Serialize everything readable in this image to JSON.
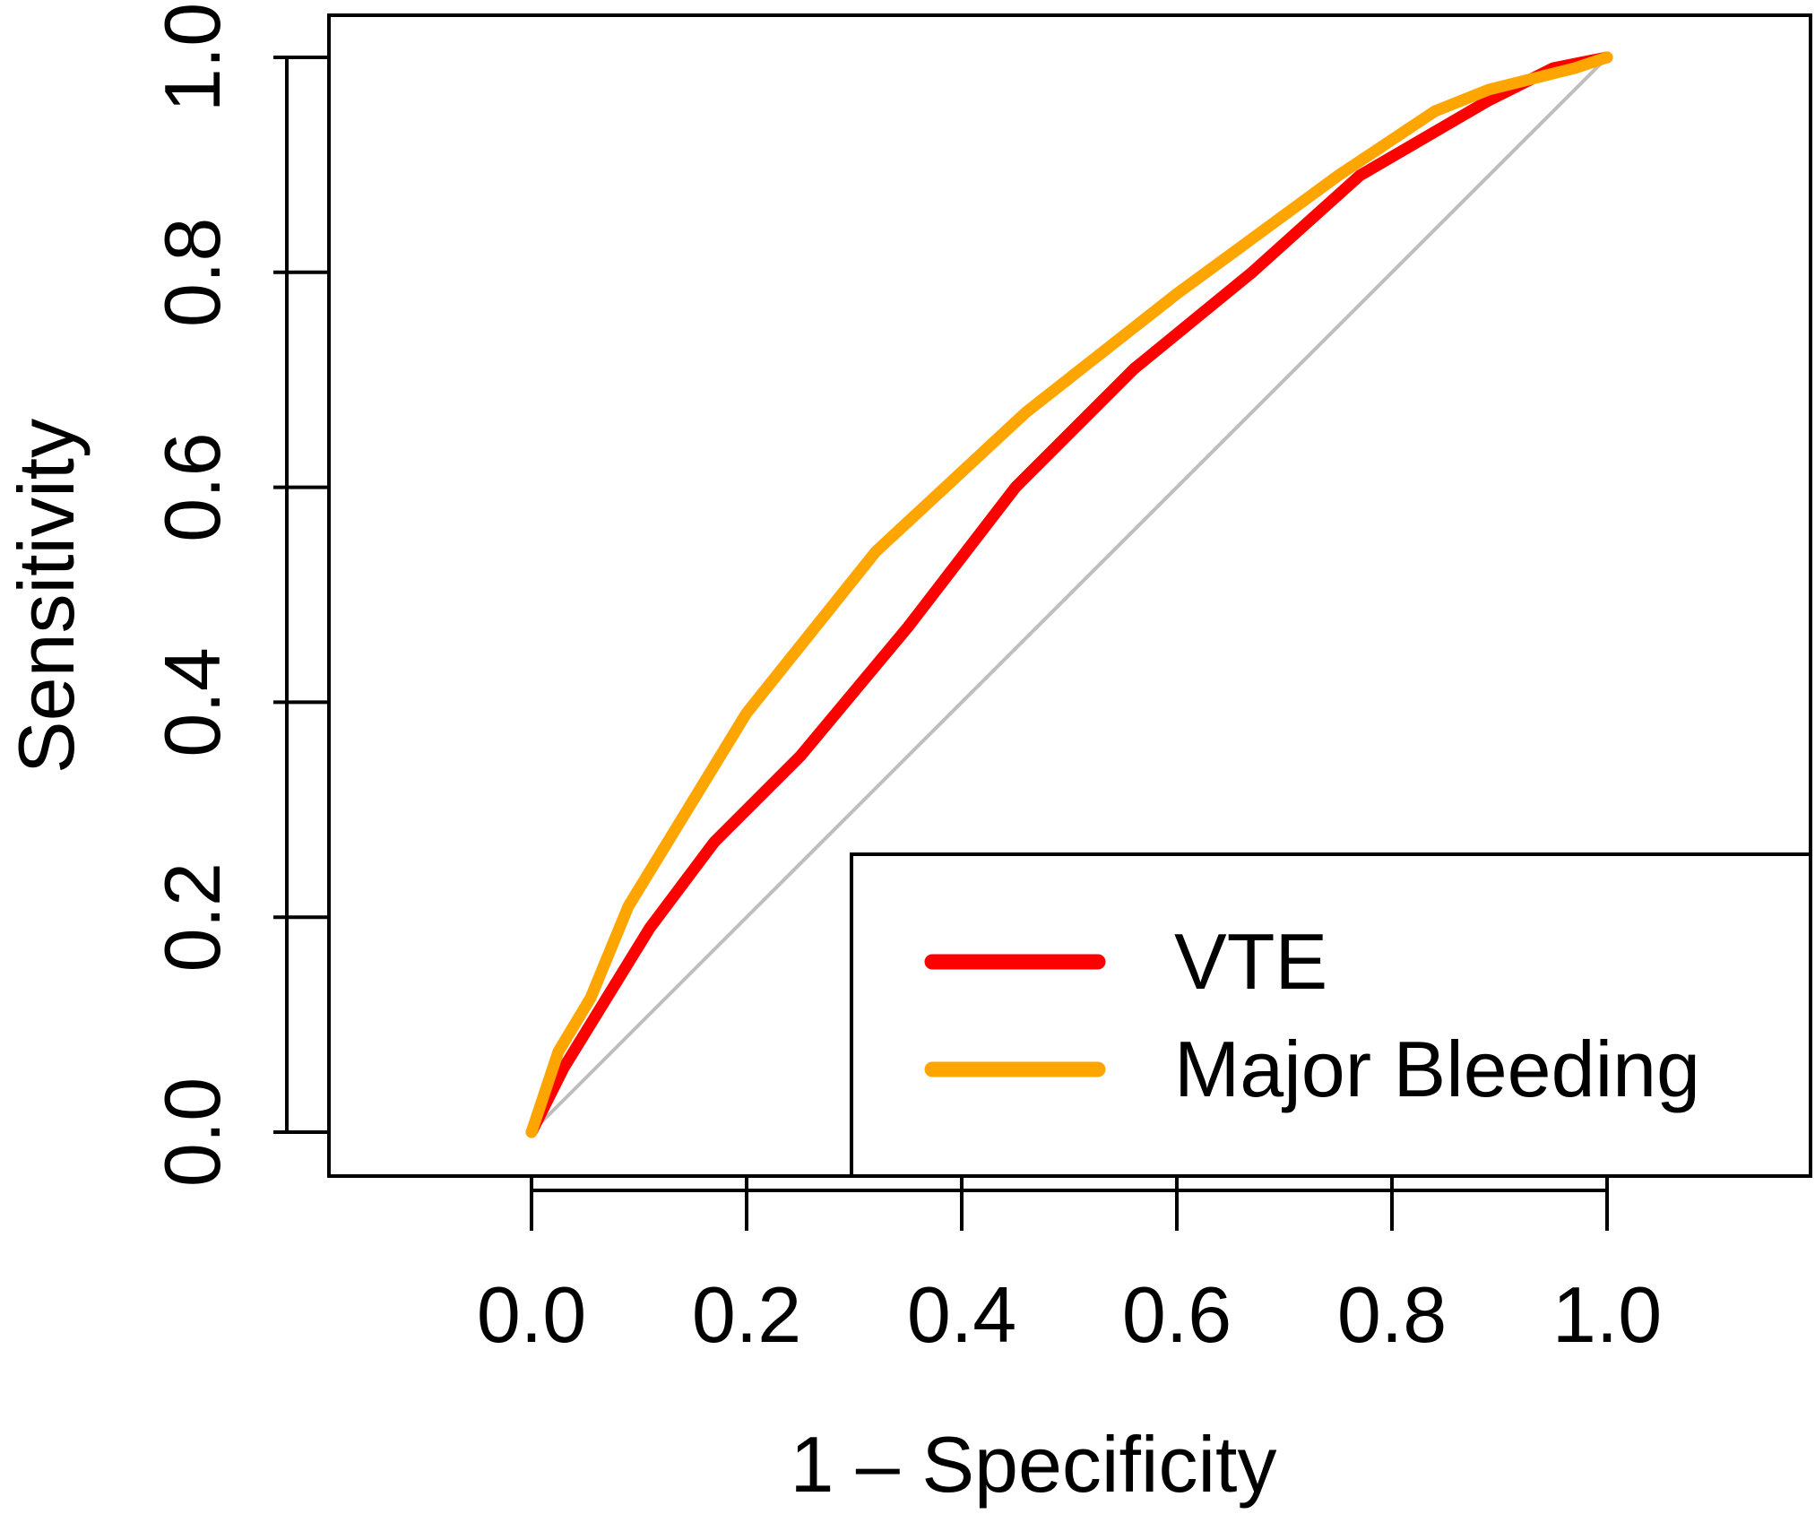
{
  "chart_data": {
    "type": "line",
    "xlabel": "1 – Specificity",
    "ylabel": "Sensitivity",
    "xlim": [
      0.0,
      1.0
    ],
    "ylim": [
      0.0,
      1.0
    ],
    "x_ticks": [
      "0.0",
      "0.2",
      "0.4",
      "0.6",
      "0.8",
      "1.0"
    ],
    "y_ticks": [
      "0.0",
      "0.2",
      "0.4",
      "0.6",
      "0.8",
      "1.0"
    ],
    "grid": false,
    "legend_position": "bottom-right",
    "reference_line": {
      "x": [
        0,
        1
      ],
      "y": [
        0,
        1
      ],
      "color": "#bebebe"
    },
    "series": [
      {
        "name": "VTE",
        "color": "#ff0000",
        "x": [
          0.0,
          0.03,
          0.11,
          0.17,
          0.25,
          0.35,
          0.45,
          0.56,
          0.67,
          0.77,
          0.89,
          0.95,
          1.0
        ],
        "y": [
          0.0,
          0.06,
          0.19,
          0.27,
          0.35,
          0.47,
          0.6,
          0.71,
          0.8,
          0.89,
          0.96,
          0.99,
          1.0
        ]
      },
      {
        "name": "Major Bleeding",
        "color": "#ffa500",
        "x": [
          0.0,
          0.025,
          0.055,
          0.09,
          0.2,
          0.32,
          0.46,
          0.6,
          0.75,
          0.84,
          0.89,
          0.97,
          1.0
        ],
        "y": [
          0.0,
          0.075,
          0.125,
          0.21,
          0.39,
          0.54,
          0.67,
          0.78,
          0.89,
          0.95,
          0.97,
          0.99,
          1.0
        ]
      }
    ]
  }
}
